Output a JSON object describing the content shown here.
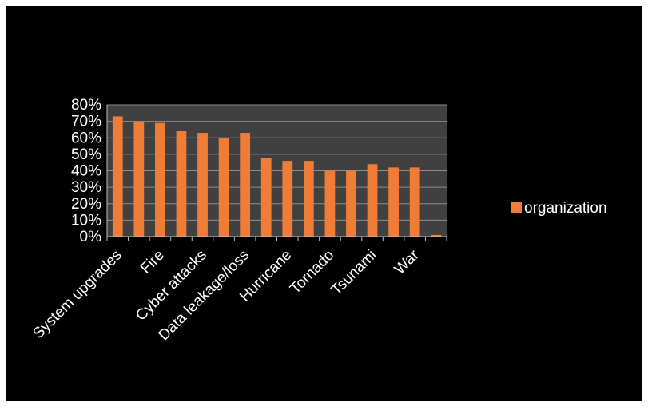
{
  "chart_data": {
    "type": "bar",
    "title": "",
    "xlabel": "",
    "ylabel": "",
    "ylim": [
      0,
      80
    ],
    "y_ticks": [
      "0%",
      "10%",
      "20%",
      "30%",
      "40%",
      "50%",
      "60%",
      "70%",
      "80%"
    ],
    "grid": true,
    "legend_position": "right",
    "categories": [
      "System upgrades",
      "",
      "Fire",
      "",
      "Cyber attacks",
      "",
      "Data leakage/loss",
      "",
      "Hurricane",
      "",
      "Tornado",
      "",
      "Tsunami",
      "",
      "War",
      ""
    ],
    "series": [
      {
        "name": "organization",
        "color": "#f07c36",
        "values": [
          73,
          70,
          69,
          64,
          63,
          60,
          63,
          48,
          46,
          46,
          40,
          40,
          44,
          42,
          42,
          1
        ]
      }
    ],
    "colors": {
      "plot_bg": "#404040",
      "gridline": "#8c8c8c",
      "frame_bg": "#000000"
    }
  }
}
